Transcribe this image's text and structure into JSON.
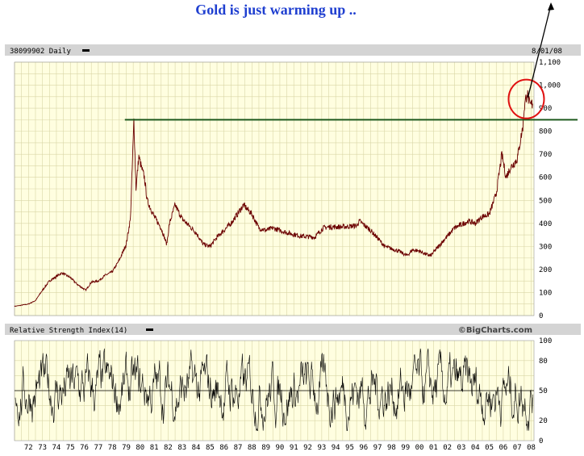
{
  "headline": "Gold is just warming up ..",
  "colors": {
    "plot_bg": "#fffee0",
    "grid": "#d9d6a6",
    "header_bg": "#d4d4d4",
    "headline": "#1f3fd0",
    "price_line": "#6b0000",
    "support_line": "#1e5a1e",
    "highlight_circle": "#e01010",
    "rsi_line": "#000000"
  },
  "main_panel": {
    "symbol": "38099902",
    "period": "Daily",
    "date": "8/01/08"
  },
  "rsi_panel": {
    "label": "Relative Strength Index(14)",
    "watermark": "©BigCharts.com"
  },
  "chart_data": [
    {
      "type": "line",
      "title": "38099902 Daily",
      "x_unit": "year",
      "xlim": [
        1971.5,
        2008.7
      ],
      "ylim": [
        0,
        1100
      ],
      "y_ticks": [
        0,
        100,
        200,
        300,
        400,
        500,
        600,
        700,
        800,
        900,
        1000,
        1100
      ],
      "y_tick_labels": [
        "0",
        "100",
        "200",
        "300",
        "400",
        "500",
        "600",
        "700",
        "800",
        "900",
        "1,000",
        "1,100"
      ],
      "grid": true,
      "series": [
        {
          "x": [
            1971.5,
            1972.0,
            1972.5,
            1973.0,
            1973.5,
            1974.0,
            1974.5,
            1974.9,
            1975.5,
            1976.0,
            1976.6,
            1977.0,
            1977.5,
            1978.0,
            1978.5,
            1979.0,
            1979.5,
            1979.8,
            1980.05,
            1980.2,
            1980.4,
            1980.6,
            1980.8,
            1981.0,
            1981.5,
            1982.0,
            1982.4,
            1982.6,
            1983.0,
            1983.5,
            1984.0,
            1984.5,
            1985.0,
            1985.5,
            1986.0,
            1986.5,
            1987.0,
            1987.9,
            1988.5,
            1989.0,
            1989.5,
            1990.0,
            1990.5,
            1991.0,
            1992.0,
            1993.0,
            1993.6,
            1994.0,
            1995.0,
            1996.0,
            1996.2,
            1997.0,
            1997.6,
            1998.0,
            1998.5,
            1999.0,
            1999.6,
            2000.0,
            2000.5,
            2001.0,
            2001.3,
            2002.0,
            2003.0,
            2004.0,
            2004.5,
            2005.0,
            2005.5,
            2006.0,
            2006.4,
            2006.7,
            2007.0,
            2007.5,
            2007.9,
            2008.0,
            2008.2,
            2008.4,
            2008.6
          ],
          "y": [
            40,
            45,
            50,
            65,
            110,
            150,
            170,
            185,
            165,
            135,
            110,
            145,
            150,
            175,
            190,
            240,
            310,
            420,
            850,
            550,
            690,
            640,
            600,
            500,
            430,
            380,
            310,
            400,
            480,
            420,
            390,
            360,
            310,
            300,
            340,
            370,
            400,
            480,
            440,
            380,
            370,
            380,
            370,
            360,
            345,
            340,
            380,
            385,
            385,
            390,
            410,
            370,
            330,
            300,
            290,
            280,
            260,
            285,
            280,
            265,
            260,
            310,
            380,
            410,
            400,
            430,
            440,
            530,
            700,
            600,
            640,
            680,
            820,
            900,
            970,
            910,
            920
          ]
        }
      ],
      "annotations": [
        {
          "kind": "horizontal_line",
          "y": 850,
          "x_start": 1979.4
        },
        {
          "kind": "circle",
          "x": 2008.15,
          "y": 940
        },
        {
          "kind": "arrow",
          "direction": "up"
        }
      ]
    },
    {
      "type": "line",
      "title": "Relative Strength Index(14)",
      "x_unit": "year",
      "xlim": [
        1971.5,
        2008.7
      ],
      "ylim": [
        0,
        100
      ],
      "y_ticks": [
        0,
        20,
        50,
        80,
        100
      ],
      "categories": [
        "72",
        "73",
        "74",
        "75",
        "76",
        "77",
        "78",
        "79",
        "80",
        "81",
        "82",
        "83",
        "84",
        "85",
        "86",
        "87",
        "88",
        "89",
        "90",
        "91",
        "92",
        "93",
        "94",
        "95",
        "96",
        "97",
        "98",
        "99",
        "00",
        "01",
        "02",
        "03",
        "04",
        "05",
        "06",
        "07",
        "08"
      ],
      "reference_lines": [
        50
      ],
      "rsi_range": [
        10,
        92
      ],
      "grid": true
    }
  ]
}
